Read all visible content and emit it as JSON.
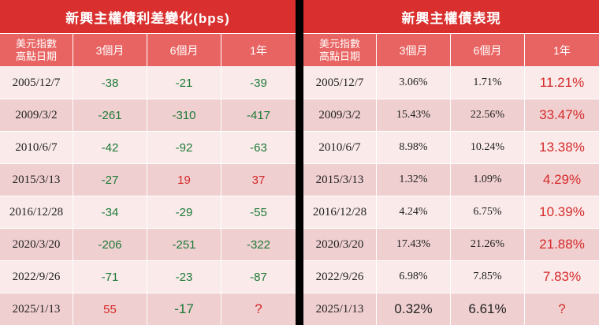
{
  "left": {
    "title": "新興主權債利差變化(bps)",
    "headers": {
      "date_line1": "美元指數",
      "date_line2": "高點日期",
      "m3": "3個月",
      "m6": "6個月",
      "y1": "1年"
    },
    "rows": [
      {
        "date": "2005/12/7",
        "m3": "-38",
        "m6": "-21",
        "y1": "-39"
      },
      {
        "date": "2009/3/2",
        "m3": "-261",
        "m6": "-310",
        "y1": "-417"
      },
      {
        "date": "2010/6/7",
        "m3": "-42",
        "m6": "-92",
        "y1": "-63"
      },
      {
        "date": "2015/3/13",
        "m3": "-27",
        "m6": "19",
        "y1": "37"
      },
      {
        "date": "2016/12/28",
        "m3": "-34",
        "m6": "-29",
        "y1": "-55"
      },
      {
        "date": "2020/3/20",
        "m3": "-206",
        "m6": "-251",
        "y1": "-322"
      },
      {
        "date": "2022/9/26",
        "m3": "-71",
        "m6": "-23",
        "y1": "-87"
      },
      {
        "date": "2025/1/13",
        "m3": "55",
        "m6": "-17",
        "y1": "?"
      }
    ]
  },
  "right": {
    "title": "新興主權債表現",
    "headers": {
      "date_line1": "美元指數",
      "date_line2": "高點日期",
      "m3": "3個月",
      "m6": "6個月",
      "y1": "1年"
    },
    "rows": [
      {
        "date": "2005/12/7",
        "m3": "3.06%",
        "m6": "1.71%",
        "y1": "11.21%"
      },
      {
        "date": "2009/3/2",
        "m3": "15.43%",
        "m6": "22.56%",
        "y1": "33.47%"
      },
      {
        "date": "2010/6/7",
        "m3": "8.98%",
        "m6": "10.24%",
        "y1": "13.38%"
      },
      {
        "date": "2015/3/13",
        "m3": "1.32%",
        "m6": "1.09%",
        "y1": "4.29%"
      },
      {
        "date": "2016/12/28",
        "m3": "4.24%",
        "m6": "6.75%",
        "y1": "10.39%"
      },
      {
        "date": "2020/3/20",
        "m3": "17.43%",
        "m6": "21.26%",
        "y1": "21.88%"
      },
      {
        "date": "2022/9/26",
        "m3": "6.98%",
        "m6": "7.85%",
        "y1": "7.83%"
      },
      {
        "date": "2025/1/13",
        "m3": "0.32%",
        "m6": "6.61%",
        "y1": "?"
      }
    ]
  },
  "colors": {
    "title_bg": "#d9302f",
    "header_bg": "#e86462",
    "row_light": "#faeaea",
    "row_dark": "#f0cfd0",
    "positive_spread": "#d62a2a",
    "negative_spread": "#1c7a36",
    "return_1y": "#c62828"
  }
}
